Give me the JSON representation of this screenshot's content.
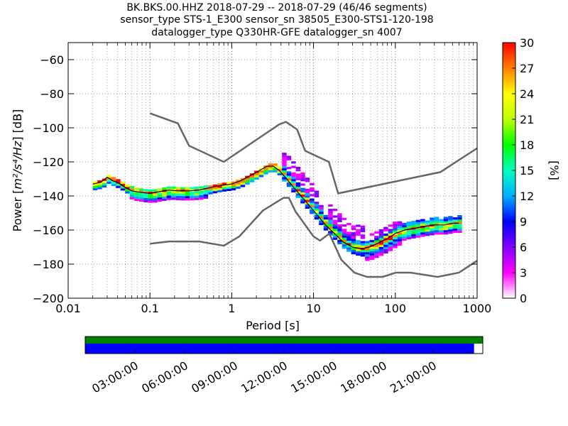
{
  "chart_data": {
    "type": "heatmap",
    "title_lines": [
      "BK.BKS.00.HHZ   2018-07-29 -- 2018-07-29  (46/46 segments)",
      "sensor_type STS-1_E300 sensor_sn 38505_E300-STS1-120-198",
      "datalogger_type Q330HR-GFE datalogger_sn 4007"
    ],
    "xlabel": "Period [s]",
    "ylabel_text": "Power [",
    "ylabel_unit": "m²/s⁴/Hz",
    "ylabel_end": "] [dB]",
    "x_scale": "log",
    "xlim": [
      0.01,
      1000
    ],
    "ylim": [
      -200,
      -50
    ],
    "x_ticks": [
      {
        "v": 0.01,
        "label": "0.01"
      },
      {
        "v": 0.1,
        "label": "0.1"
      },
      {
        "v": 1,
        "label": "1"
      },
      {
        "v": 10,
        "label": "10"
      },
      {
        "v": 100,
        "label": "100"
      },
      {
        "v": 1000,
        "label": "1000"
      }
    ],
    "y_ticks": [
      {
        "v": -60,
        "label": "−60"
      },
      {
        "v": -80,
        "label": "−80"
      },
      {
        "v": -100,
        "label": "−100"
      },
      {
        "v": -120,
        "label": "−120"
      },
      {
        "v": -140,
        "label": "−140"
      },
      {
        "v": -160,
        "label": "−160"
      },
      {
        "v": -180,
        "label": "−180"
      },
      {
        "v": -200,
        "label": "−200"
      }
    ],
    "grid": "dotted",
    "colorbar": {
      "label": "[%]",
      "range": [
        0,
        30
      ],
      "ticks": [
        {
          "v": 0,
          "label": "0"
        },
        {
          "v": 3,
          "label": "3"
        },
        {
          "v": 6,
          "label": "6"
        },
        {
          "v": 9,
          "label": "9"
        },
        {
          "v": 12,
          "label": "12"
        },
        {
          "v": 15,
          "label": "15"
        },
        {
          "v": 18,
          "label": "18"
        },
        {
          "v": 21,
          "label": "21"
        },
        {
          "v": 24,
          "label": "24"
        },
        {
          "v": 27,
          "label": "27"
        },
        {
          "v": 30,
          "label": "30"
        }
      ],
      "colors": [
        "#ffffff",
        "#ff00ff",
        "#8000ff",
        "#0000ff",
        "#00b0ff",
        "#00ffc0",
        "#00ff00",
        "#c0ff00",
        "#ffff00",
        "#ff8000",
        "#ff0000"
      ]
    },
    "noise_model_high": {
      "x": [
        0.1,
        0.22,
        0.3,
        0.8,
        3.8,
        4.6,
        6.3,
        7.9,
        15.4,
        20,
        354.8,
        1000
      ],
      "y": [
        -91.5,
        -97.4,
        -110.5,
        -120,
        -98,
        -96.5,
        -101,
        -113.5,
        -120,
        -138.5,
        -126,
        -112
      ]
    },
    "noise_model_low": {
      "x": [
        0.1,
        0.17,
        0.4,
        0.8,
        1.24,
        2.4,
        4.3,
        5,
        6,
        10,
        12,
        15.6,
        21.9,
        31.6,
        45,
        70,
        101,
        154,
        328,
        600,
        1000
      ],
      "y": [
        -168,
        -166.7,
        -166.7,
        -169.2,
        -163.7,
        -148.6,
        -141.1,
        -141.1,
        -149,
        -163.8,
        -166.2,
        -162.1,
        -177.5,
        -185,
        -187.5,
        -187.5,
        -185,
        -185,
        -187.5,
        -185,
        -178
      ]
    },
    "mode_curve": {
      "x": [
        0.02,
        0.025,
        0.03,
        0.035,
        0.04,
        0.05,
        0.06,
        0.08,
        0.1,
        0.13,
        0.17,
        0.22,
        0.3,
        0.4,
        0.5,
        0.7,
        1,
        1.3,
        1.7,
        2.2,
        2.7,
        3.2,
        3.8,
        4.5,
        5.5,
        7,
        9,
        11,
        14,
        18,
        23,
        30,
        38,
        48,
        60,
        80,
        100,
        130,
        170,
        220,
        300,
        400,
        500,
        600
      ],
      "y": [
        -133,
        -132,
        -129,
        -131,
        -132,
        -135,
        -137,
        -138,
        -138.5,
        -137.5,
        -136.5,
        -137,
        -137,
        -136.5,
        -135.5,
        -134,
        -133,
        -131,
        -128,
        -125,
        -122.5,
        -122.5,
        -125,
        -129,
        -134,
        -140,
        -146,
        -151,
        -157,
        -162,
        -167,
        -170,
        -171,
        -170,
        -168,
        -165,
        -162,
        -160,
        -159,
        -158,
        -157,
        -157,
        -156,
        -156
      ]
    },
    "availability_bar": {
      "colors": {
        "data": "#008000",
        "gaps": "#0000ff"
      },
      "time_ticks": [
        "03:00:00",
        "06:00:00",
        "09:00:00",
        "12:00:00",
        "15:00:00",
        "18:00:00",
        "21:00:00"
      ],
      "data_coverage": 1.0,
      "segment_coverage": 0.978
    }
  }
}
